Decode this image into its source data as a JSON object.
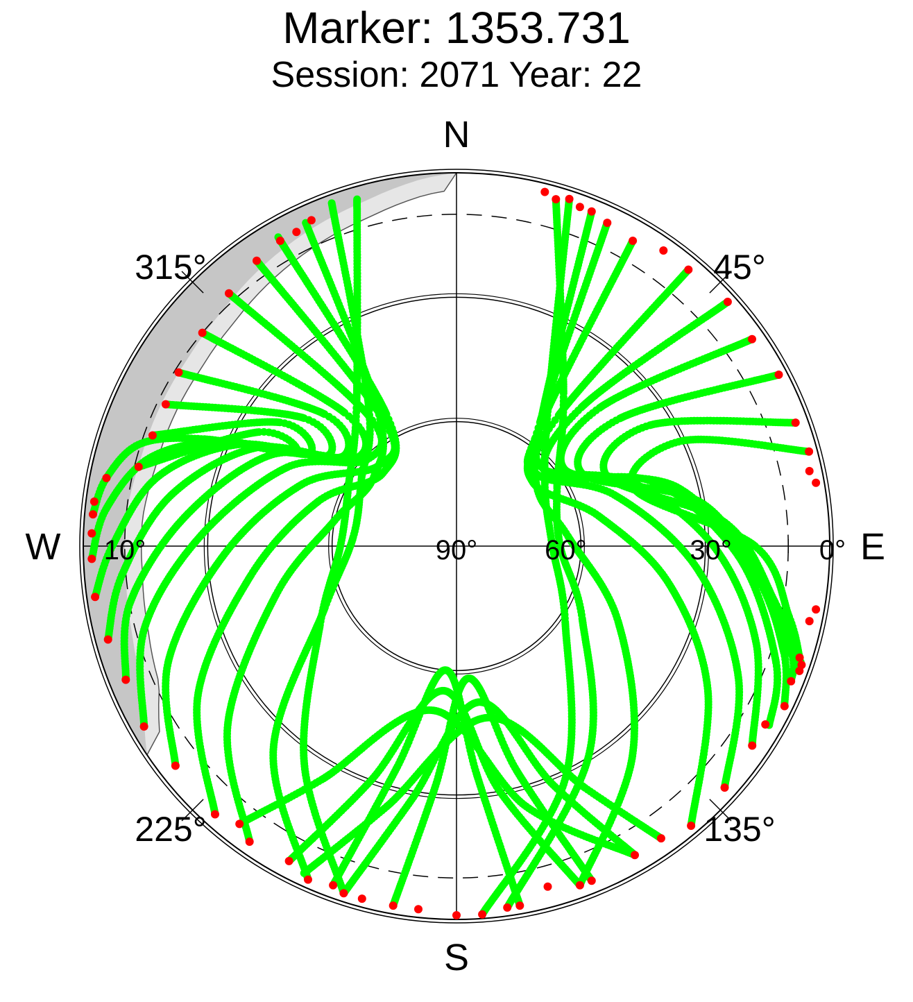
{
  "title": "Marker: 1353.731",
  "subtitle": "Session: 2071 Year: 22",
  "chart_data": {
    "type": "scatter",
    "projection": "polar-skyplot",
    "radial_axis": {
      "quantity": "elevation (deg)",
      "range": [
        0,
        90
      ],
      "center_value": 90,
      "tick_labels": [
        "90°",
        "60°",
        "30°",
        "0°"
      ],
      "extra_label": "10°",
      "dashed_ring_elevation": 10
    },
    "azimuth_axis": {
      "direction": "clockwise from north",
      "range": [
        0,
        360
      ]
    },
    "cardinal_labels": {
      "n": "N",
      "e": "E",
      "s": "S",
      "w": "W"
    },
    "azimuth_labels": [
      "45°",
      "135°",
      "225°",
      "315°"
    ],
    "mask": {
      "description": "obstruction mask (west/northwest)",
      "azimuths": [
        0,
        10,
        20,
        45,
        60,
        75,
        90,
        180,
        236,
        245,
        255,
        265,
        275,
        285,
        295,
        305,
        315,
        325,
        335,
        345,
        355,
        360
      ],
      "elevations": [
        0,
        0,
        0,
        0,
        0,
        0,
        0,
        0,
        0,
        7,
        9,
        10,
        10,
        11,
        11,
        11,
        10,
        8,
        6,
        4,
        1,
        0
      ],
      "light_elevation_offset": 4
    },
    "series": [
      {
        "color": "#00ff00",
        "marker": "dot",
        "tracks": [
          {
            "az": [
              16,
              35,
              60,
              90,
              120,
              148,
              172
            ],
            "el": [
              3,
              45,
              62,
              65,
              55,
              30,
              2
            ]
          },
          {
            "az": [
              18,
              32,
              55,
              88,
              125,
              155,
              176
            ],
            "el": [
              2,
              48,
              64,
              67,
              58,
              28,
              1
            ]
          },
          {
            "az": [
              22,
              33,
              54,
              85,
              115,
              140,
              160
            ],
            "el": [
              3,
              52,
              66,
              63,
              47,
              24,
              3
            ]
          },
          {
            "az": [
              25,
              34,
              50,
              78,
              100,
              120,
              140
            ],
            "el": [
              4,
              54,
              66,
              55,
              38,
              20,
              2
            ]
          },
          {
            "az": [
              30,
              35,
              48,
              72,
              95,
              115,
              132
            ],
            "el": [
              5,
              55,
              64,
              50,
              32,
              15,
              3
            ]
          },
          {
            "az": [
              40,
              38,
              48,
              70,
              90,
              108,
              124
            ],
            "el": [
              3,
              50,
              62,
              45,
              28,
              14,
              4
            ]
          },
          {
            "az": [
              48,
              42,
              52,
              72,
              92,
              110,
              120
            ],
            "el": [
              2,
              45,
              62,
              40,
              22,
              8,
              3
            ]
          },
          {
            "az": [
              55,
              46,
              55,
              75,
              95,
              108,
              116
            ],
            "el": [
              3,
              42,
              58,
              35,
              18,
              7,
              2
            ]
          },
          {
            "az": [
              62,
              52,
              60,
              80,
              98,
              108,
              112
            ],
            "el": [
              2,
              40,
              55,
              30,
              15,
              5,
              3
            ]
          },
          {
            "az": [
              70,
              58,
              65,
              85,
              100,
              108,
              110
            ],
            "el": [
              3,
              35,
              50,
              25,
              12,
              4,
              2
            ]
          },
          {
            "az": [
              75,
              65,
              72,
              90,
              102,
              108,
              109
            ],
            "el": [
              2,
              30,
              45,
              18,
              8,
              3,
              2
            ]
          },
          {
            "az": [
              344,
              325,
              300,
              270,
              240,
              215,
              198
            ],
            "el": [
              3,
              48,
              60,
              62,
              52,
              26,
              2
            ]
          },
          {
            "az": [
              340,
              328,
              305,
              275,
              245,
              222,
              204
            ],
            "el": [
              2,
              50,
              62,
              65,
              55,
              24,
              2
            ]
          },
          {
            "az": [
              335,
              330,
              310,
              282,
              255,
              232,
              215
            ],
            "el": [
              4,
              52,
              64,
              60,
              45,
              20,
              3
            ]
          },
          {
            "az": [
              330,
              332,
              315,
              288,
              262,
              240,
              222
            ],
            "el": [
              4,
              54,
              65,
              55,
              40,
              18,
              3
            ]
          },
          {
            "az": [
              325,
              330,
              316,
              292,
              268,
              248,
              232
            ],
            "el": [
              6,
              55,
              63,
              50,
              34,
              15,
              4
            ]
          },
          {
            "az": [
              318,
              326,
              314,
              295,
              272,
              255,
              240
            ],
            "el": [
              8,
              52,
              60,
              45,
              28,
              12,
              3
            ]
          },
          {
            "az": [
              310,
              320,
              312,
              296,
              276,
              260,
              248
            ],
            "el": [
              10,
              48,
              58,
              40,
              24,
              10,
              4
            ]
          },
          {
            "az": [
              302,
              315,
              308,
              296,
              280,
              265,
              255
            ],
            "el": [
              11,
              45,
              55,
              36,
              20,
              9,
              3
            ]
          },
          {
            "az": [
              296,
              310,
              305,
              295,
              283,
              270,
              262
            ],
            "el": [
              12,
              42,
              52,
              32,
              16,
              7,
              2
            ]
          },
          {
            "az": [
              290,
              305,
              302,
              294,
              286,
              276,
              268
            ],
            "el": [
              12,
              38,
              48,
              28,
              13,
              5,
              2
            ]
          },
          {
            "az": [
              284,
              300,
              300,
              293,
              288,
              281,
              275
            ],
            "el": [
              11,
              35,
              45,
              24,
              10,
              4,
              2
            ]
          },
          {
            "az": [
              170,
              175,
              185,
              195,
              200
            ],
            "el": [
              2,
              35,
              60,
              35,
              3
            ]
          },
          {
            "az": [
              160,
              170,
              185,
              200,
              208
            ],
            "el": [
              3,
              30,
              55,
              30,
              4
            ]
          },
          {
            "az": [
              150,
              165,
              188,
              210,
              218
            ],
            "el": [
              4,
              25,
              50,
              25,
              5
            ]
          },
          {
            "az": [
              190,
              185,
              175,
              165,
              158
            ],
            "el": [
              2,
              32,
              58,
              34,
              3
            ]
          },
          {
            "az": [
              198,
              190,
              172,
              158,
              150
            ],
            "el": [
              2,
              28,
              52,
              28,
              4
            ]
          },
          {
            "az": [
              205,
              195,
              170,
              152,
              145
            ],
            "el": [
              3,
              25,
              48,
              24,
              4
            ]
          }
        ]
      },
      {
        "color": "#ff0000",
        "marker": "dot",
        "points": {
          "az": [
            14,
            16,
            18,
            20,
            22,
            25,
            30,
            35,
            40,
            48,
            55,
            62,
            70,
            75,
            78,
            80,
            100,
            102,
            108,
            109,
            110,
            112,
            116,
            120,
            124,
            132,
            140,
            145,
            150,
            158,
            160,
            165,
            170,
            172,
            176,
            180,
            186,
            190,
            195,
            198,
            200,
            204,
            208,
            215,
            218,
            222,
            232,
            240,
            248,
            255,
            262,
            268,
            272,
            275,
            277,
            281,
            284,
            290,
            296,
            302,
            310,
            318,
            325,
            330,
            333,
            336
          ],
          "el": [
            2,
            3,
            2,
            3,
            3,
            4,
            5,
            3,
            3,
            2,
            3,
            2,
            3,
            2,
            3,
            2,
            2,
            3,
            3,
            2,
            2,
            3,
            2,
            4,
            4,
            3,
            2,
            4,
            4,
            3,
            3,
            5,
            2,
            2,
            1,
            1,
            2,
            2,
            2,
            2,
            3,
            2,
            4,
            3,
            5,
            3,
            4,
            3,
            4,
            3,
            2,
            2,
            2,
            2,
            2,
            4,
            11,
            12,
            12,
            11,
            10,
            8,
            6,
            5,
            5,
            4
          ]
        }
      }
    ]
  }
}
